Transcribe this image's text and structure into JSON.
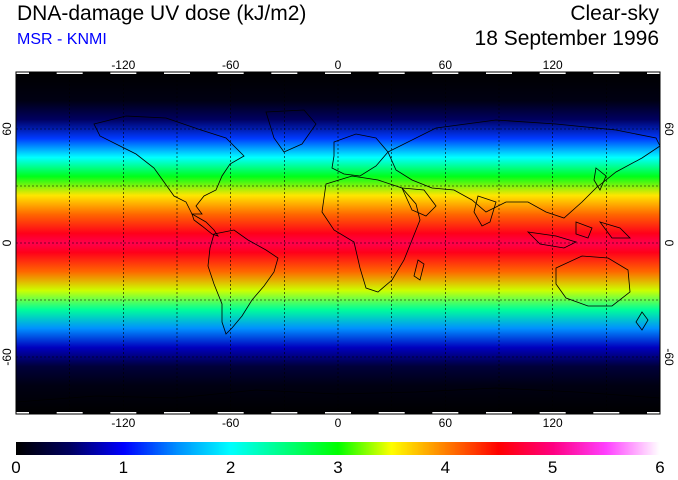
{
  "header": {
    "title": "DNA-damage UV dose (kJ/m2)",
    "subtitle": "MSR - KNMI",
    "condition": "Clear-sky",
    "date": "18 September 1996"
  },
  "colors": {
    "subtitle": "#0000ff",
    "ocean_low": "#000020",
    "land_outline": "#000000",
    "grid": "#000000"
  },
  "map": {
    "projection": "equirectangular",
    "lon_range": [
      -180,
      180
    ],
    "lat_range": [
      -90,
      90
    ],
    "lon_ticks": [
      -120,
      -60,
      0,
      60,
      120
    ],
    "lat_ticks": [
      60,
      0,
      -60
    ],
    "lon_tick_labels": [
      "-120",
      "-60",
      "0",
      "60",
      "120"
    ],
    "lat_tick_labels": [
      "60",
      "0",
      "-60"
    ],
    "gridlines": true
  },
  "colorbar": {
    "min": 0,
    "max": 6,
    "tick_labels": [
      "0",
      "1",
      "2",
      "3",
      "4",
      "5",
      "6"
    ],
    "stops": [
      {
        "value": 0.0,
        "color": "#000000"
      },
      {
        "value": 0.5,
        "color": "#000060"
      },
      {
        "value": 1.0,
        "color": "#0000ff"
      },
      {
        "value": 1.5,
        "color": "#0090ff"
      },
      {
        "value": 2.0,
        "color": "#00ffff"
      },
      {
        "value": 2.5,
        "color": "#00ff80"
      },
      {
        "value": 3.0,
        "color": "#00ff00"
      },
      {
        "value": 3.5,
        "color": "#ffff00"
      },
      {
        "value": 4.0,
        "color": "#ff8000"
      },
      {
        "value": 4.5,
        "color": "#ff0000"
      },
      {
        "value": 5.0,
        "color": "#ff0080"
      },
      {
        "value": 5.5,
        "color": "#ff40ff"
      },
      {
        "value": 6.0,
        "color": "#ffffff"
      }
    ]
  },
  "uv_by_latitude": [
    {
      "lat": 90,
      "dose": 0.0
    },
    {
      "lat": 75,
      "dose": 0.1
    },
    {
      "lat": 65,
      "dose": 0.5
    },
    {
      "lat": 55,
      "dose": 1.2
    },
    {
      "lat": 45,
      "dose": 2.0
    },
    {
      "lat": 35,
      "dose": 2.9
    },
    {
      "lat": 25,
      "dose": 3.6
    },
    {
      "lat": 15,
      "dose": 4.1
    },
    {
      "lat": 5,
      "dose": 4.6
    },
    {
      "lat": 0,
      "dose": 4.8
    },
    {
      "lat": -5,
      "dose": 4.6
    },
    {
      "lat": -15,
      "dose": 4.1
    },
    {
      "lat": -25,
      "dose": 3.4
    },
    {
      "lat": -35,
      "dose": 2.4
    },
    {
      "lat": -45,
      "dose": 1.5
    },
    {
      "lat": -55,
      "dose": 0.8
    },
    {
      "lat": -65,
      "dose": 0.3
    },
    {
      "lat": -75,
      "dose": 0.1
    },
    {
      "lat": -90,
      "dose": 0.0
    }
  ]
}
